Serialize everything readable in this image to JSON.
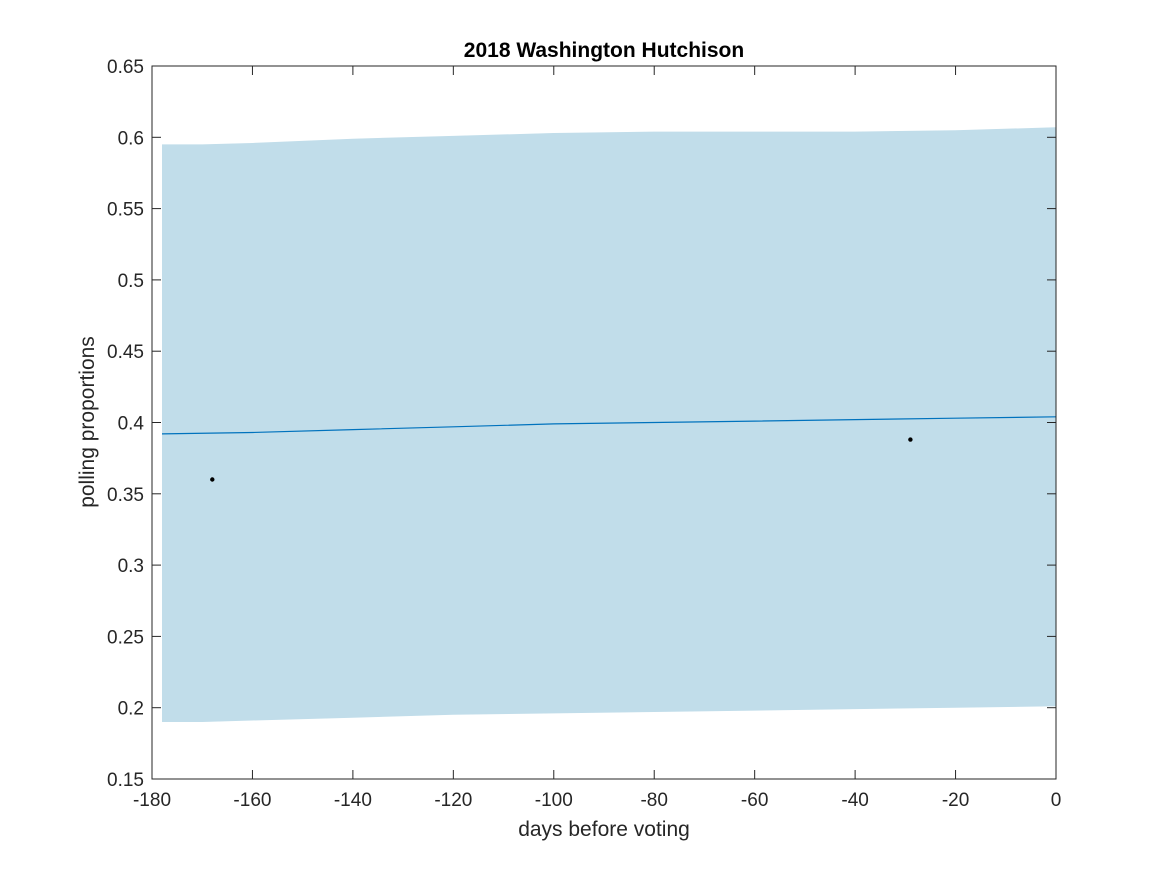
{
  "chart_data": {
    "type": "area",
    "title": "2018 Washington Hutchison",
    "xlabel": "days before voting",
    "ylabel": "polling proportions",
    "xlim": [
      -180,
      0
    ],
    "ylim": [
      0.15,
      0.65
    ],
    "xticks": [
      -180,
      -160,
      -140,
      -120,
      -100,
      -80,
      -60,
      -40,
      -20,
      0
    ],
    "yticks": [
      0.15,
      0.2,
      0.25,
      0.3,
      0.35,
      0.4,
      0.45,
      0.5,
      0.55,
      0.6,
      0.65
    ],
    "xtick_labels": [
      "-180",
      "-160",
      "-140",
      "-120",
      "-100",
      "-80",
      "-60",
      "-40",
      "-20",
      "0"
    ],
    "ytick_labels": [
      "0.15",
      "0.2",
      "0.25",
      "0.3",
      "0.35",
      "0.4",
      "0.45",
      "0.5",
      "0.55",
      "0.6",
      "0.65"
    ],
    "grid": false,
    "band": {
      "x": [
        -178,
        -170,
        -160,
        -140,
        -120,
        -100,
        -80,
        -60,
        -40,
        -20,
        0
      ],
      "upper": [
        0.595,
        0.595,
        0.596,
        0.599,
        0.601,
        0.603,
        0.604,
        0.604,
        0.604,
        0.605,
        0.607
      ],
      "lower": [
        0.19,
        0.19,
        0.191,
        0.193,
        0.195,
        0.196,
        0.197,
        0.198,
        0.199,
        0.2,
        0.201
      ],
      "color": "#c1ddea"
    },
    "line": {
      "x": [
        -178,
        -160,
        -140,
        -120,
        -100,
        -80,
        -60,
        -40,
        -20,
        0
      ],
      "y": [
        0.392,
        0.393,
        0.395,
        0.397,
        0.399,
        0.4,
        0.401,
        0.402,
        0.403,
        0.404
      ],
      "color": "#0072bd"
    },
    "points": {
      "x": [
        -168,
        -29
      ],
      "y": [
        0.36,
        0.388
      ],
      "color": "#000000"
    }
  }
}
